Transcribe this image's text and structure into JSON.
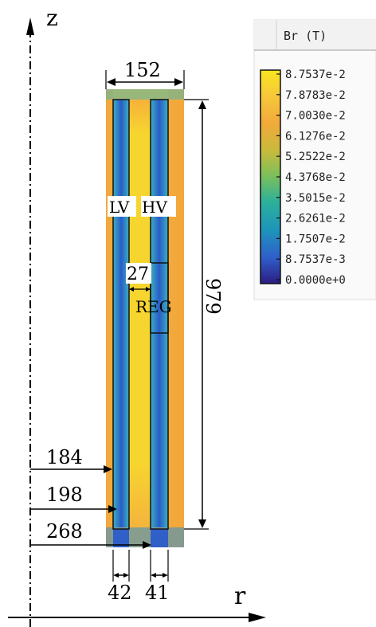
{
  "axes": {
    "z_label": "z",
    "r_label": "r"
  },
  "dimensions": {
    "width_top": "152",
    "height": "979",
    "lv_radius": "184",
    "lv_outer_radius": "198",
    "hv_radius": "268",
    "lv_width": "42",
    "hv_width": "41",
    "gap": "27"
  },
  "labels": {
    "lv": "LV",
    "hv": "HV",
    "reg": "REG"
  },
  "legend": {
    "title": "Br (T)",
    "ticks": [
      "8.7537e-2",
      "7.8783e-2",
      "7.0030e-2",
      "6.1276e-2",
      "5.2522e-2",
      "4.3768e-2",
      "3.5015e-2",
      "2.6261e-2",
      "1.7507e-2",
      "8.7537e-3",
      "0.0000e+0"
    ]
  },
  "colors": {
    "high": "#f6e925",
    "mid_high": "#f3b03a",
    "mid": "#21a3b0",
    "low": "#2a5fc4",
    "min": "#2b1f7a"
  }
}
